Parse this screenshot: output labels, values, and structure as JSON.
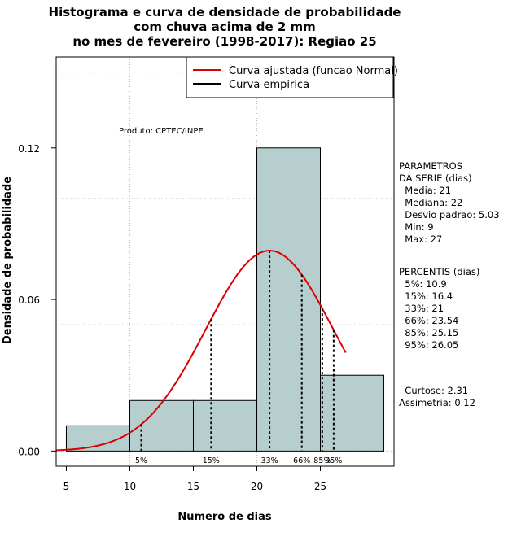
{
  "chart_data": {
    "type": "histogram",
    "title_lines": [
      "Histograma e curva de densidade de probabilidade",
      "com chuva acima de 2 mm",
      "no mes de fevereiro (1998-2017): Regiao 25"
    ],
    "xlabel": "Numero de dias",
    "ylabel": "Densidade de probabilidade",
    "xlim": [
      4.2,
      30.8
    ],
    "ylim": [
      -0.006,
      0.156
    ],
    "x_ticks": [
      5,
      10,
      15,
      20,
      25
    ],
    "x_tick_labels": [
      "5",
      "10",
      "15",
      "20",
      "25"
    ],
    "y_ticks": [
      0,
      0.06,
      0.12
    ],
    "y_tick_labels": [
      "0.00",
      "0.06",
      "0.12"
    ],
    "grid_x": [
      10,
      20
    ],
    "grid_y": [
      0.05,
      0.1,
      0.15
    ],
    "bins": [
      {
        "start": 5,
        "end": 10,
        "density": 0.01
      },
      {
        "start": 10,
        "end": 15,
        "density": 0.02
      },
      {
        "start": 15,
        "end": 20,
        "density": 0.02
      },
      {
        "start": 20,
        "end": 25,
        "density": 0.12
      },
      {
        "start": 25,
        "end": 30,
        "density": 0.03
      }
    ],
    "bar_color": "#b7cece",
    "curve_color": "#dd0000",
    "normal_fit": {
      "mean": 21,
      "sd": 5.03,
      "x_from": 4.2,
      "x_to": 27
    },
    "percentile_lines": [
      {
        "x": 10.9,
        "label": "5%"
      },
      {
        "x": 16.4,
        "label": "15%"
      },
      {
        "x": 21,
        "label": "33%"
      },
      {
        "x": 23.54,
        "label": "66%"
      },
      {
        "x": 25.15,
        "label": "85%"
      },
      {
        "x": 26.05,
        "label": "95%"
      }
    ],
    "product_label": "Produto: CPTEC/INPE",
    "legend": {
      "position": "top-right",
      "entries": [
        {
          "label": "Curva ajustada (funcao Normal)",
          "color": "#dd0000"
        },
        {
          "label": "Curva empirica",
          "color": "#000000"
        }
      ]
    }
  },
  "side_panel": {
    "parametros": [
      "PARAMETROS",
      "DA SERIE (dias)",
      "  Media: 21",
      "  Mediana: 22",
      "  Desvio padrao: 5.03",
      "  Min: 9",
      "  Max: 27"
    ],
    "percentis": [
      "PERCENTIS (dias)",
      "  5%: 10.9",
      "  15%: 16.4",
      "  33%: 21",
      "  66%: 23.54",
      "  85%: 25.15",
      "  95%: 26.05"
    ],
    "extras": [
      "  Curtose: 2.31",
      "Assimetria: 0.12"
    ]
  }
}
